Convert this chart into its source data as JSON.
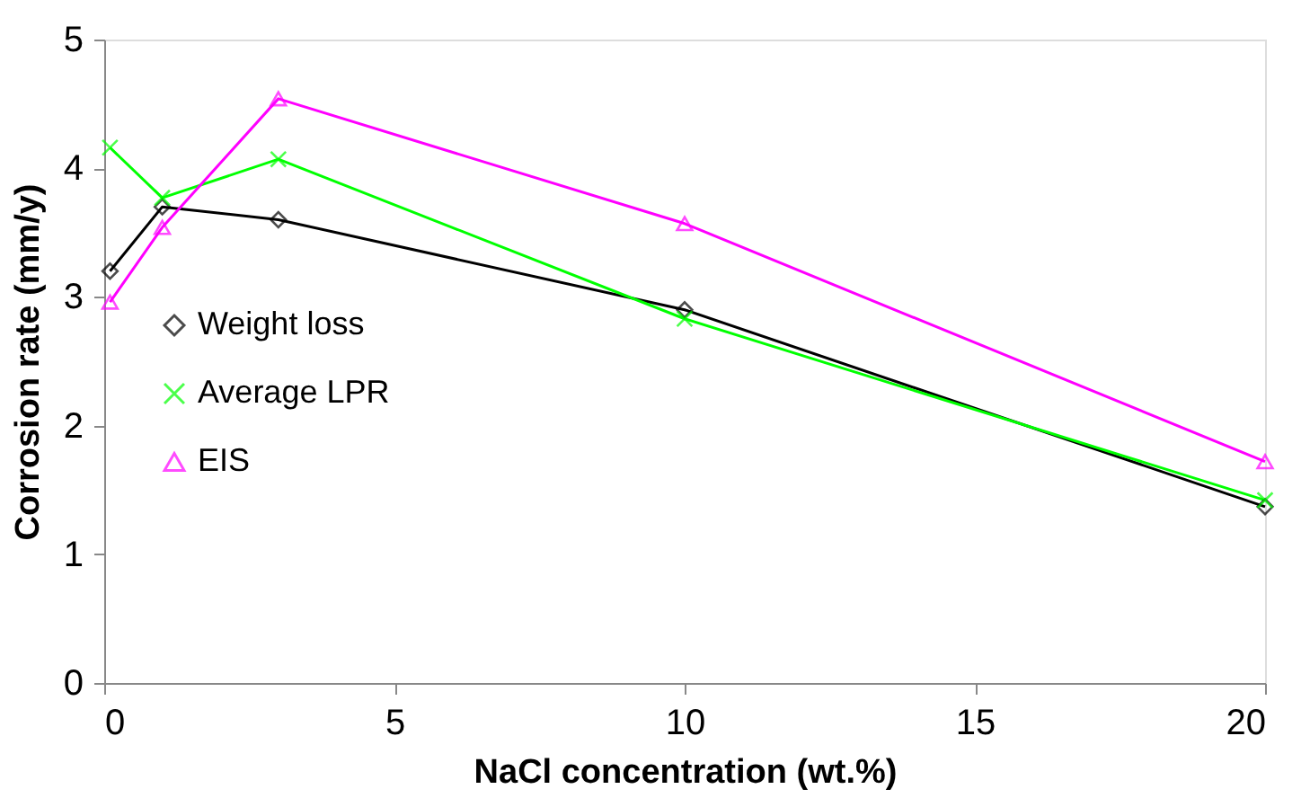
{
  "chart_data": {
    "type": "line",
    "xlabel": "NaCl concentration (wt.%)",
    "ylabel": "Corrosion rate (mm/y)",
    "xlim": [
      0,
      20
    ],
    "xticks": [
      0,
      5,
      10,
      15,
      20
    ],
    "ylim": [
      0,
      5
    ],
    "yticks": [
      0,
      1,
      2,
      3,
      4,
      5
    ],
    "grid": false,
    "legend": "left",
    "series": [
      {
        "name": "Weight loss",
        "color": "#000000",
        "marker": "diamond",
        "x": [
          0.1,
          1,
          3,
          10,
          20
        ],
        "values": [
          3.2,
          3.7,
          3.6,
          2.9,
          1.37
        ]
      },
      {
        "name": "Average LPR",
        "color": "#00ff00",
        "marker": "cross",
        "x": [
          0.1,
          1,
          3,
          10,
          20
        ],
        "values": [
          4.16,
          3.77,
          4.07,
          2.83,
          1.42
        ]
      },
      {
        "name": "EIS",
        "color": "#ff00ff",
        "marker": "triangle",
        "x": [
          0.1,
          1,
          3,
          10,
          20
        ],
        "values": [
          2.96,
          3.54,
          4.54,
          3.57,
          1.72
        ]
      }
    ]
  }
}
